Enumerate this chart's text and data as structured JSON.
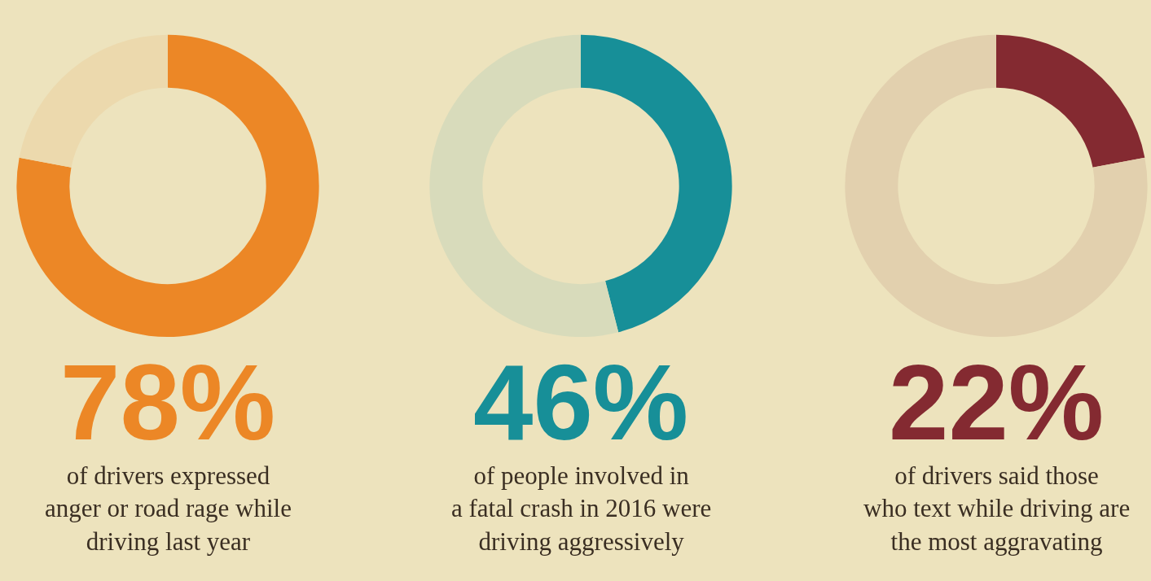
{
  "chart_data": [
    {
      "type": "donut",
      "categories": [
        null,
        null
      ],
      "values": [
        78,
        22
      ],
      "colors": [
        "#ec8726",
        "#ecd9ad"
      ],
      "annotations": [
        "78%",
        "of drivers expressed\nanger or road rage while\ndriving last year"
      ]
    },
    {
      "type": "donut",
      "categories": [
        null,
        null
      ],
      "values": [
        46,
        54
      ],
      "colors": [
        "#178f98",
        "#d8dbbb"
      ],
      "annotations": [
        "46%",
        "of people involved in\na fatal crash in 2016 were\ndriving aggressively"
      ]
    },
    {
      "type": "donut",
      "categories": [
        null,
        null
      ],
      "values": [
        22,
        78
      ],
      "colors": [
        "#842a31",
        "#e2d0ae"
      ],
      "annotations": [
        "22%",
        "of drivers said those\nwho text while driving are\nthe most aggravating"
      ]
    }
  ]
}
